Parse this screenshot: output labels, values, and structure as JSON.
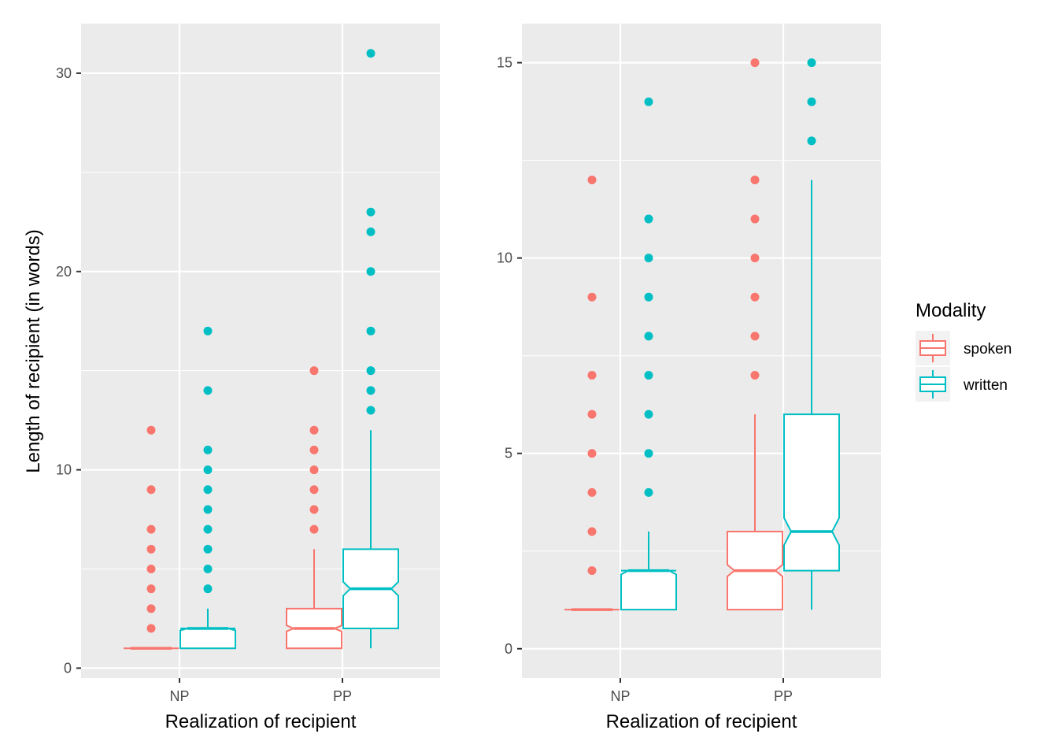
{
  "chart_data": [
    {
      "type": "boxplot",
      "notched": true,
      "xlabel": "Realization of recipient",
      "ylabel": "Length of recipient (in words)",
      "ylim": [
        -0.5,
        32.5
      ],
      "yticks": [
        0,
        10,
        20,
        30
      ],
      "categories": [
        "NP",
        "PP"
      ],
      "grid": true,
      "series": [
        {
          "name": "spoken",
          "boxes": [
            {
              "category": "NP",
              "min": 1,
              "q1": 1,
              "median": 1,
              "q3": 1,
              "max": 1,
              "notch": [
                1,
                1
              ],
              "outliers": [
                2,
                3,
                4,
                5,
                6,
                7,
                9,
                12
              ]
            },
            {
              "category": "PP",
              "min": 1,
              "q1": 1,
              "median": 2,
              "q3": 3,
              "max": 6,
              "notch": [
                1.85,
                2.15
              ],
              "outliers": [
                7,
                8,
                9,
                10,
                11,
                12,
                15
              ]
            }
          ]
        },
        {
          "name": "written",
          "boxes": [
            {
              "category": "NP",
              "min": 1,
              "q1": 1,
              "median": 2,
              "q3": 2,
              "max": 3,
              "notch": [
                1.9,
                2.1
              ],
              "outliers": [
                4,
                5,
                6,
                7,
                8,
                9,
                10,
                11,
                14,
                17
              ]
            },
            {
              "category": "PP",
              "min": 1,
              "q1": 2,
              "median": 4,
              "q3": 6,
              "max": 12,
              "notch": [
                3.65,
                4.35
              ],
              "outliers": [
                13,
                14,
                15,
                17,
                20,
                22,
                23,
                31
              ]
            }
          ]
        }
      ]
    },
    {
      "type": "boxplot",
      "notched": true,
      "xlabel": "Realization of recipient",
      "ylabel": "",
      "ylim": [
        -0.75,
        16.0
      ],
      "yticks": [
        0,
        5,
        10,
        15
      ],
      "categories": [
        "NP",
        "PP"
      ],
      "grid": true,
      "series": [
        {
          "name": "spoken",
          "boxes": [
            {
              "category": "NP",
              "min": 1,
              "q1": 1,
              "median": 1,
              "q3": 1,
              "max": 1,
              "notch": [
                1,
                1
              ],
              "outliers": [
                2,
                3,
                4,
                5,
                6,
                7,
                9,
                12
              ]
            },
            {
              "category": "PP",
              "min": 1,
              "q1": 1,
              "median": 2,
              "q3": 3,
              "max": 6,
              "notch": [
                1.85,
                2.15
              ],
              "outliers": [
                7,
                8,
                9,
                10,
                11,
                12,
                15
              ]
            }
          ]
        },
        {
          "name": "written",
          "boxes": [
            {
              "category": "NP",
              "min": 1,
              "q1": 1,
              "median": 2,
              "q3": 2,
              "max": 3,
              "notch": [
                1.9,
                2.1
              ],
              "outliers": [
                4,
                5,
                6,
                7,
                8,
                9,
                10,
                11,
                14
              ]
            },
            {
              "category": "PP",
              "min": 1,
              "q1": 2,
              "median": 3,
              "q3": 6,
              "max": 12,
              "notch": [
                2.65,
                3.35
              ],
              "outliers": [
                13,
                14,
                15
              ]
            }
          ]
        }
      ]
    }
  ],
  "legend": {
    "title": "Modality",
    "placement": "right",
    "items": [
      {
        "label": "spoken",
        "color": "#F8766D"
      },
      {
        "label": "written",
        "color": "#00BFC4"
      }
    ]
  },
  "colors": {
    "panel_background": "#EBEBEB",
    "grid": "#FFFFFF",
    "spoken": "#F8766D",
    "written": "#00BFC4"
  }
}
